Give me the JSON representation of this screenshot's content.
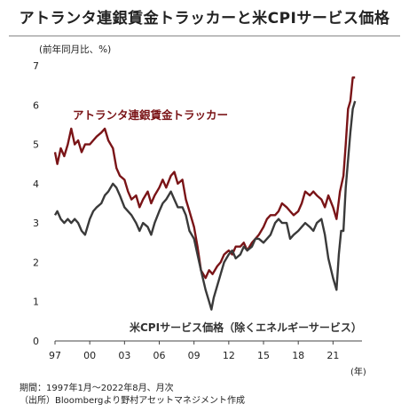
{
  "title": "アトランタ連銀賃金トラッカーと米CPIサービス価格",
  "unit_label": "(前年同月比、%)",
  "year_unit": "(年)",
  "notes": {
    "period": "期間：1997年1月～2022年8月、月次",
    "source": "（出所）Bloombergより野村アセットマネジメント作成"
  },
  "chart_data": {
    "type": "line",
    "title": "アトランタ連銀賃金トラッカーと米CPIサービス価格",
    "xlabel": "(年)",
    "ylabel": "(前年同月比、%)",
    "xlim": [
      1997.0,
      2023.5
    ],
    "ylim": [
      0,
      7
    ],
    "xticks": [
      1997,
      2000,
      2003,
      2006,
      2009,
      2012,
      2015,
      2018,
      2021
    ],
    "xtick_labels": [
      "97",
      "00",
      "03",
      "06",
      "09",
      "12",
      "15",
      "18",
      "21"
    ],
    "yticks": [
      0,
      1,
      2,
      3,
      4,
      5,
      6,
      7
    ],
    "grid": false,
    "series": [
      {
        "name": "アトランタ連銀賃金トラッカー",
        "color": "#7a1417",
        "label_position": "upper-left",
        "points": [
          [
            1997.0,
            4.8
          ],
          [
            1997.2,
            4.5
          ],
          [
            1997.5,
            4.9
          ],
          [
            1997.8,
            4.7
          ],
          [
            1998.1,
            5.0
          ],
          [
            1998.4,
            5.4
          ],
          [
            1998.7,
            5.0
          ],
          [
            1999.0,
            5.1
          ],
          [
            1999.3,
            4.8
          ],
          [
            1999.6,
            5.0
          ],
          [
            2000.0,
            5.0
          ],
          [
            2000.3,
            5.1
          ],
          [
            2000.6,
            5.2
          ],
          [
            2001.0,
            5.3
          ],
          [
            2001.3,
            5.4
          ],
          [
            2001.6,
            5.1
          ],
          [
            2002.0,
            4.9
          ],
          [
            2002.3,
            4.4
          ],
          [
            2002.6,
            4.2
          ],
          [
            2003.0,
            4.1
          ],
          [
            2003.3,
            3.8
          ],
          [
            2003.6,
            3.6
          ],
          [
            2004.0,
            3.7
          ],
          [
            2004.3,
            3.4
          ],
          [
            2004.6,
            3.6
          ],
          [
            2005.0,
            3.8
          ],
          [
            2005.3,
            3.5
          ],
          [
            2005.6,
            3.7
          ],
          [
            2006.0,
            3.9
          ],
          [
            2006.3,
            4.1
          ],
          [
            2006.6,
            3.9
          ],
          [
            2007.0,
            4.2
          ],
          [
            2007.3,
            4.3
          ],
          [
            2007.6,
            4.0
          ],
          [
            2008.0,
            4.1
          ],
          [
            2008.3,
            3.6
          ],
          [
            2008.6,
            3.3
          ],
          [
            2009.0,
            2.9
          ],
          [
            2009.3,
            2.4
          ],
          [
            2009.6,
            1.8
          ],
          [
            2010.0,
            1.6
          ],
          [
            2010.3,
            1.8
          ],
          [
            2010.6,
            1.7
          ],
          [
            2011.0,
            1.9
          ],
          [
            2011.3,
            2.0
          ],
          [
            2011.6,
            2.2
          ],
          [
            2012.0,
            2.3
          ],
          [
            2012.3,
            2.2
          ],
          [
            2012.6,
            2.4
          ],
          [
            2013.0,
            2.4
          ],
          [
            2013.3,
            2.5
          ],
          [
            2013.6,
            2.3
          ],
          [
            2014.0,
            2.5
          ],
          [
            2014.3,
            2.6
          ],
          [
            2014.6,
            2.7
          ],
          [
            2015.0,
            2.9
          ],
          [
            2015.3,
            3.1
          ],
          [
            2015.6,
            3.2
          ],
          [
            2016.0,
            3.2
          ],
          [
            2016.3,
            3.3
          ],
          [
            2016.6,
            3.5
          ],
          [
            2017.0,
            3.4
          ],
          [
            2017.3,
            3.3
          ],
          [
            2017.6,
            3.2
          ],
          [
            2018.0,
            3.3
          ],
          [
            2018.3,
            3.5
          ],
          [
            2018.6,
            3.8
          ],
          [
            2019.0,
            3.7
          ],
          [
            2019.3,
            3.8
          ],
          [
            2019.6,
            3.7
          ],
          [
            2020.0,
            3.6
          ],
          [
            2020.3,
            3.4
          ],
          [
            2020.6,
            3.7
          ],
          [
            2021.0,
            3.4
          ],
          [
            2021.3,
            3.1
          ],
          [
            2021.6,
            3.8
          ],
          [
            2021.9,
            4.2
          ],
          [
            2022.1,
            5.0
          ],
          [
            2022.3,
            5.9
          ],
          [
            2022.5,
            6.1
          ],
          [
            2022.7,
            6.7
          ],
          [
            2022.9,
            6.7
          ]
        ]
      },
      {
        "name": "米CPIサービス価格（除くエネルギーサービス）",
        "color": "#3a3a3a",
        "label_position": "bottom-center",
        "points": [
          [
            1997.0,
            3.2
          ],
          [
            1997.2,
            3.3
          ],
          [
            1997.5,
            3.1
          ],
          [
            1997.8,
            3.0
          ],
          [
            1998.1,
            3.1
          ],
          [
            1998.4,
            3.0
          ],
          [
            1998.7,
            3.1
          ],
          [
            1999.0,
            3.0
          ],
          [
            1999.3,
            2.8
          ],
          [
            1999.6,
            2.7
          ],
          [
            2000.0,
            3.1
          ],
          [
            2000.3,
            3.3
          ],
          [
            2000.6,
            3.4
          ],
          [
            2001.0,
            3.5
          ],
          [
            2001.3,
            3.7
          ],
          [
            2001.6,
            3.8
          ],
          [
            2002.0,
            4.0
          ],
          [
            2002.3,
            3.9
          ],
          [
            2002.6,
            3.7
          ],
          [
            2003.0,
            3.4
          ],
          [
            2003.3,
            3.3
          ],
          [
            2003.6,
            3.2
          ],
          [
            2004.0,
            3.0
          ],
          [
            2004.3,
            2.8
          ],
          [
            2004.6,
            3.0
          ],
          [
            2005.0,
            2.9
          ],
          [
            2005.3,
            2.7
          ],
          [
            2005.6,
            3.0
          ],
          [
            2006.0,
            3.3
          ],
          [
            2006.3,
            3.5
          ],
          [
            2006.6,
            3.6
          ],
          [
            2007.0,
            3.8
          ],
          [
            2007.3,
            3.6
          ],
          [
            2007.6,
            3.4
          ],
          [
            2008.0,
            3.4
          ],
          [
            2008.3,
            3.2
          ],
          [
            2008.6,
            2.8
          ],
          [
            2009.0,
            2.6
          ],
          [
            2009.3,
            2.2
          ],
          [
            2009.6,
            1.8
          ],
          [
            2010.0,
            1.3
          ],
          [
            2010.3,
            1.0
          ],
          [
            2010.5,
            0.8
          ],
          [
            2010.7,
            1.1
          ],
          [
            2011.0,
            1.4
          ],
          [
            2011.3,
            1.7
          ],
          [
            2011.6,
            2.0
          ],
          [
            2012.0,
            2.2
          ],
          [
            2012.3,
            2.3
          ],
          [
            2012.6,
            2.1
          ],
          [
            2013.0,
            2.2
          ],
          [
            2013.3,
            2.4
          ],
          [
            2013.6,
            2.3
          ],
          [
            2014.0,
            2.4
          ],
          [
            2014.3,
            2.6
          ],
          [
            2014.6,
            2.6
          ],
          [
            2015.0,
            2.5
          ],
          [
            2015.3,
            2.6
          ],
          [
            2015.6,
            2.7
          ],
          [
            2016.0,
            3.0
          ],
          [
            2016.3,
            3.1
          ],
          [
            2016.6,
            3.0
          ],
          [
            2017.0,
            3.0
          ],
          [
            2017.3,
            2.6
          ],
          [
            2017.6,
            2.7
          ],
          [
            2018.0,
            2.8
          ],
          [
            2018.3,
            2.9
          ],
          [
            2018.6,
            3.0
          ],
          [
            2019.0,
            2.9
          ],
          [
            2019.3,
            2.8
          ],
          [
            2019.6,
            3.0
          ],
          [
            2020.0,
            3.1
          ],
          [
            2020.3,
            2.7
          ],
          [
            2020.6,
            2.1
          ],
          [
            2021.0,
            1.6
          ],
          [
            2021.3,
            1.3
          ],
          [
            2021.5,
            2.2
          ],
          [
            2021.7,
            2.8
          ],
          [
            2021.9,
            2.8
          ],
          [
            2022.1,
            3.9
          ],
          [
            2022.3,
            4.6
          ],
          [
            2022.5,
            5.3
          ],
          [
            2022.7,
            5.9
          ],
          [
            2022.9,
            6.1
          ]
        ]
      }
    ]
  }
}
